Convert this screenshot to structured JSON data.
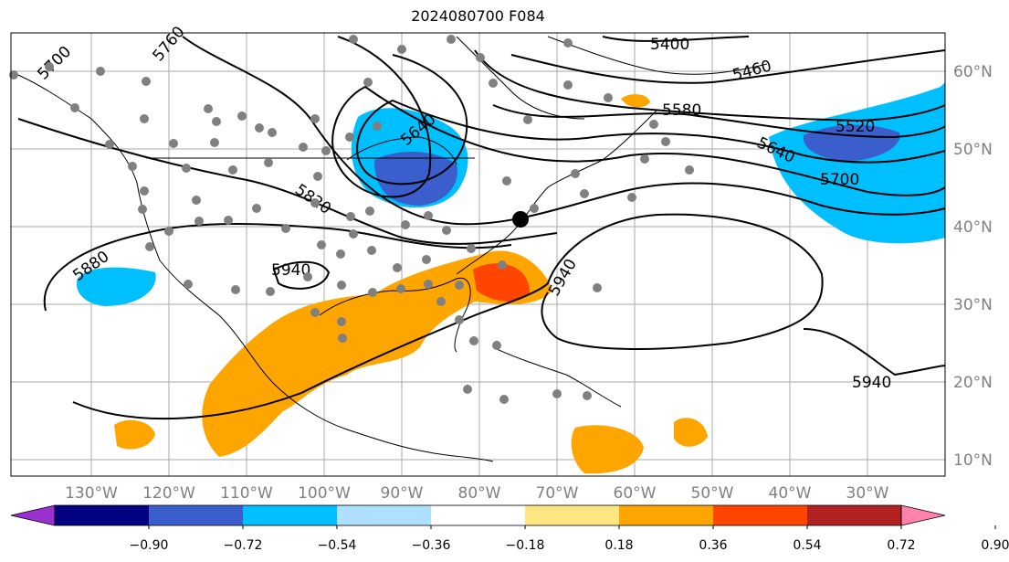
{
  "title": "2024080700 F084",
  "axes": {
    "lon_labels": [
      "130°W",
      "120°W",
      "110°W",
      "100°W",
      "90°W",
      "80°W",
      "70°W",
      "60°W",
      "50°W",
      "40°W",
      "30°W"
    ],
    "lat_labels": [
      "60°N",
      "50°N",
      "40°N",
      "30°N",
      "20°N",
      "10°N"
    ]
  },
  "contour_labels": [
    "5400",
    "5460",
    "5520",
    "5580",
    "5640",
    "5640",
    "5700",
    "5760",
    "5700",
    "5820",
    "5880",
    "5940",
    "5940",
    "5940"
  ],
  "colorbar": {
    "ticks": [
      "−0.90",
      "−0.72",
      "−0.54",
      "−0.36",
      "−0.18",
      "0.18",
      "0.36",
      "0.54",
      "0.72",
      "0.90"
    ],
    "colors": [
      "#9b30d0",
      "#000080",
      "#3a5fcd",
      "#00bfff",
      "#b0e0ff",
      "#ffffff",
      "#ffe680",
      "#ffa500",
      "#ff4500",
      "#b22222",
      "#ff82ab"
    ]
  },
  "map_colors": {
    "ocean_bg": "#ffffff",
    "positive_fill": "#ffa500",
    "strong_positive_fill": "#ff4500",
    "negative_fill": "#00bfff",
    "strong_negative_fill": "#3a5fcd",
    "station_dot": "#808080"
  }
}
